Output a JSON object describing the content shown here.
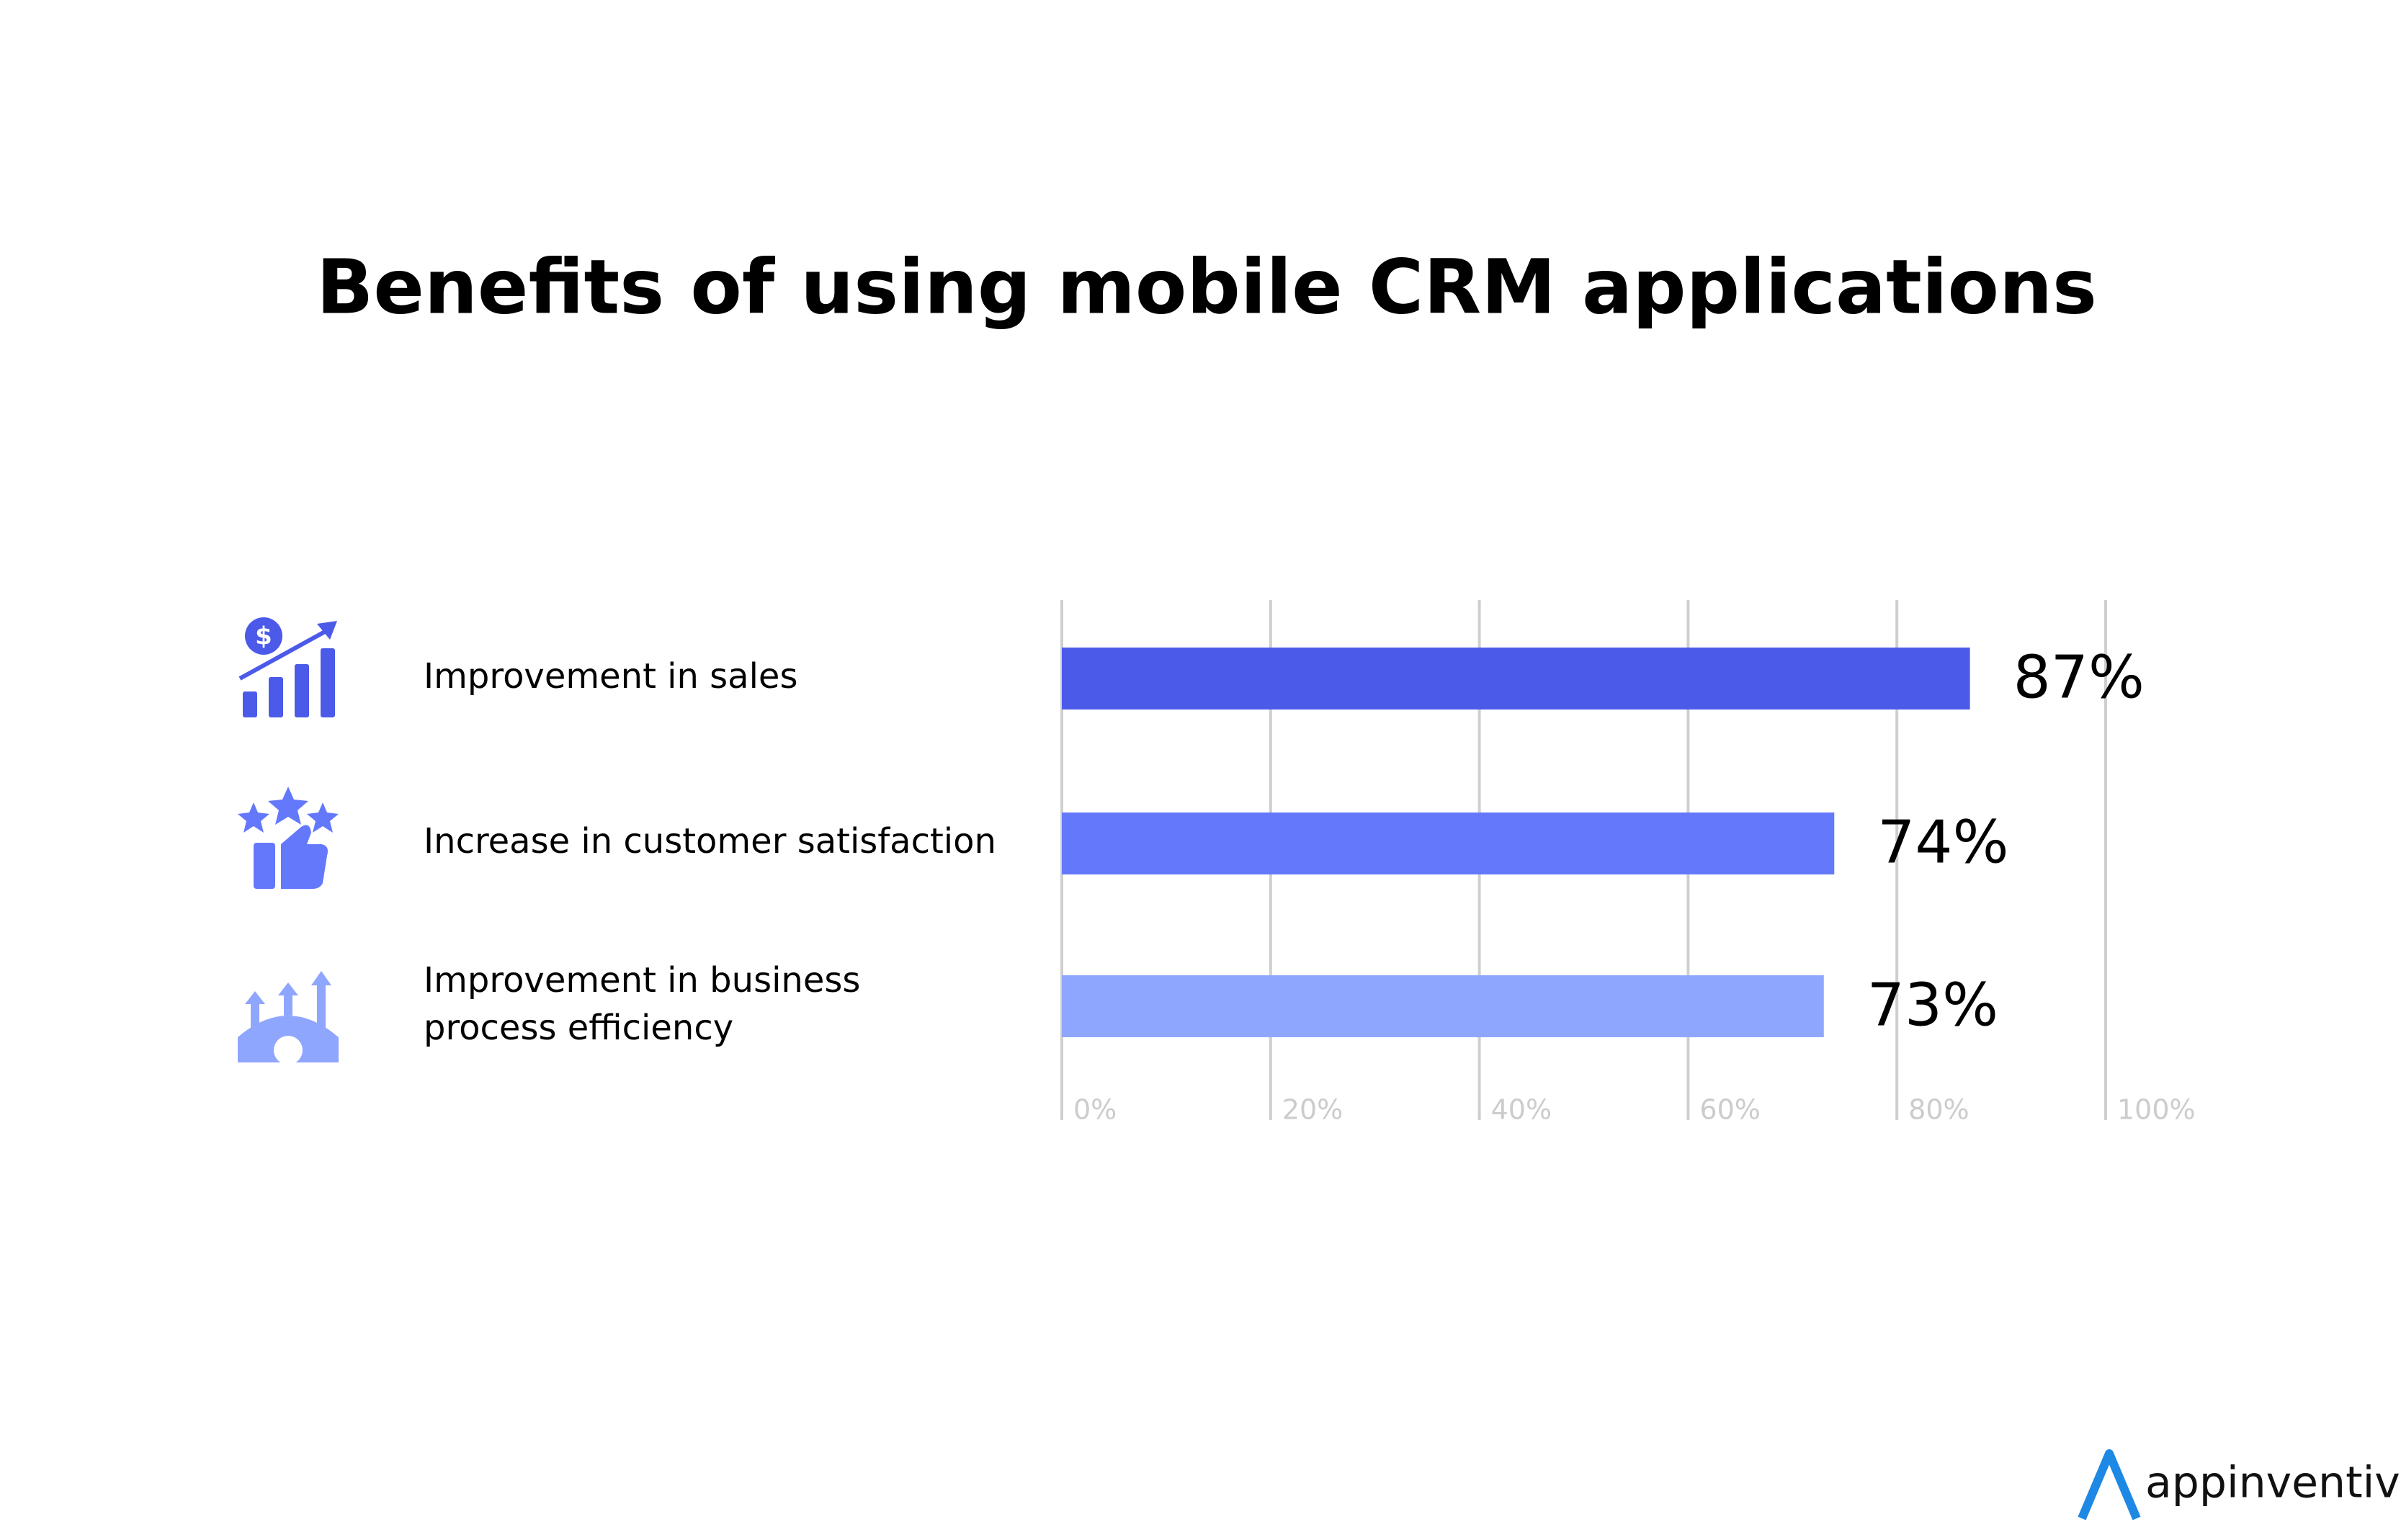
{
  "chart_data": {
    "type": "bar",
    "orientation": "horizontal",
    "title": "Benefits of using mobile CRM applications",
    "categories": [
      "Improvement in sales",
      "Increase in customer satisfaction",
      "Improvement in business\nprocess efficiency"
    ],
    "values": [
      87,
      74,
      73
    ],
    "value_labels": [
      "87%",
      "74%",
      "73%"
    ],
    "colors": [
      "#4b5ae8",
      "#6478fc",
      "#8fa6fe"
    ],
    "xlim": [
      0,
      100
    ],
    "xticks": [
      {
        "value": 0,
        "label": "0%"
      },
      {
        "value": 20,
        "label": "20%"
      },
      {
        "value": 40,
        "label": "40%"
      },
      {
        "value": 60,
        "label": "60%"
      },
      {
        "value": 80,
        "label": "80%"
      },
      {
        "value": 100,
        "label": "100%"
      }
    ],
    "grid": true
  },
  "footer": {
    "brand": "appinventiv"
  }
}
